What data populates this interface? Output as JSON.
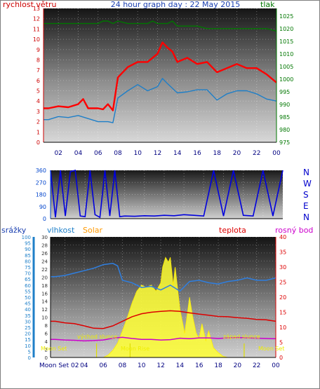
{
  "colors": {
    "wind": "#ff0000",
    "gust": "#1e7fc8",
    "pressure": "#007700",
    "direction": "#0000dd",
    "humidity": "#2f7fe0",
    "solar": "#ffff33",
    "solar_label": "#ff9900",
    "temp": "#dd0000",
    "dew": "#cc00cc",
    "tick_red": "#cc0000",
    "tick_green": "#007700",
    "tick_blue": "#0044cc",
    "sun_marker": "#dddd00"
  },
  "x_ticks": [
    "02",
    "04",
    "06",
    "08",
    "10",
    "12",
    "14",
    "16",
    "18",
    "20",
    "22",
    "00"
  ],
  "panel1": {
    "title": "24 hour graph day : 22 May 2015",
    "left_label": "rychlost větru",
    "right_label": "tlak",
    "left_ticks": [
      "0",
      "1",
      "2",
      "3",
      "4",
      "5",
      "6",
      "7",
      "8",
      "9",
      "10",
      "11",
      "12",
      "13"
    ],
    "right_ticks": [
      "975",
      "980",
      "985",
      "990",
      "995",
      "1000",
      "1005",
      "1010",
      "1015",
      "1020",
      "1025"
    ]
  },
  "panel2": {
    "left_ticks": [
      "0",
      "90",
      "180",
      "270",
      "360"
    ],
    "compass": [
      "N",
      "W",
      "S",
      "E",
      "N"
    ]
  },
  "panel3": {
    "rain_label": "srážky",
    "humidity_label": "vlhkost",
    "solar_label": "Solar",
    "temp_label": "teplota",
    "dew_label": "rosný bod",
    "rain_ticks": [
      "0",
      "5",
      "10",
      "15",
      "20",
      "25",
      "30",
      "35",
      "40",
      "45",
      "50",
      "55",
      "60",
      "65",
      "70",
      "75",
      "80",
      "85",
      "90",
      "95",
      "100"
    ],
    "scale_ticks": [
      "0",
      "2",
      "4",
      "6",
      "8",
      "10",
      "12",
      "14",
      "16",
      "18",
      "20",
      "22",
      "24",
      "26",
      "28",
      "30"
    ],
    "temp_ticks": [
      "0",
      "5",
      "10",
      "15",
      "20",
      "25",
      "30",
      "35",
      "40"
    ],
    "x_first": "Moon Set 02",
    "annotations": {
      "sunrise": "východ slunce",
      "sunset": "západ slunce",
      "moonset_left": "Moon Set",
      "moonrise": "Moon Rise",
      "moonset_right": "Moon Set"
    }
  },
  "chart_data": [
    {
      "type": "line",
      "title": "24 hour graph day : 22 May 2015",
      "x_unit": "hour",
      "xlim": [
        0.5,
        24
      ],
      "y_left": {
        "label": "rychlost větru",
        "ylim": [
          0,
          13
        ]
      },
      "y_right": {
        "label": "tlak",
        "ylim": [
          975,
          1028
        ]
      },
      "grid": true,
      "series": [
        {
          "axis": "left",
          "color": "#ff0000",
          "x": [
            0.5,
            1,
            2,
            3,
            4,
            4.5,
            5,
            6,
            6.5,
            7,
            7.5,
            8,
            9,
            10,
            11,
            12,
            12.5,
            13,
            13.5,
            14,
            15,
            16,
            17,
            18,
            19,
            20,
            21,
            22,
            23,
            24
          ],
          "values": [
            3.3,
            3.3,
            3.5,
            3.4,
            3.7,
            4.2,
            3.3,
            3.3,
            3.2,
            3.7,
            3.1,
            6.3,
            7.3,
            7.8,
            7.8,
            8.6,
            9.7,
            9.2,
            8.8,
            7.8,
            8.2,
            7.6,
            7.8,
            6.8,
            7.2,
            7.6,
            7.2,
            7.2,
            6.6,
            5.8
          ]
        },
        {
          "axis": "left",
          "color": "#1e7fc8",
          "x": [
            0.5,
            1,
            2,
            3,
            4,
            5,
            6,
            7,
            7.5,
            8,
            9,
            10,
            11,
            12,
            12.5,
            13,
            14,
            15,
            16,
            17,
            18,
            19,
            20,
            21,
            22,
            23,
            24
          ],
          "values": [
            2.2,
            2.2,
            2.5,
            2.4,
            2.6,
            2.3,
            2.0,
            2.0,
            1.9,
            4.3,
            5.0,
            5.6,
            5.0,
            5.4,
            6.2,
            5.7,
            4.8,
            4.9,
            5.1,
            5.1,
            4.1,
            4.7,
            5.0,
            5.0,
            4.7,
            4.2,
            4.0
          ]
        },
        {
          "axis": "right",
          "color": "#007700",
          "x": [
            0.5,
            5,
            6,
            6.5,
            7,
            7.5,
            8,
            9,
            10,
            11,
            11.5,
            12,
            13,
            13.5,
            14,
            15,
            16,
            17,
            18,
            19,
            20,
            21,
            22,
            23,
            24
          ],
          "values": [
            1022,
            1022,
            1022,
            1023,
            1023,
            1022,
            1023,
            1022,
            1022,
            1022,
            1023,
            1022,
            1022,
            1023,
            1021,
            1021,
            1021,
            1020,
            1020,
            1020,
            1020,
            1020,
            1020,
            1020,
            1019
          ]
        }
      ]
    },
    {
      "type": "line",
      "x_unit": "hour",
      "xlim": [
        0.5,
        24
      ],
      "ylim": [
        0,
        360
      ],
      "series": [
        {
          "color": "#0000dd",
          "x": [
            0.5,
            1,
            1.5,
            2,
            2.5,
            3,
            3.5,
            4,
            4.5,
            5,
            5.5,
            6,
            6.5,
            7,
            7.5,
            8,
            9,
            10,
            11,
            12,
            13,
            14,
            15,
            16,
            17,
            18,
            19,
            20,
            21,
            22,
            23,
            24
          ],
          "values": [
            360,
            10,
            360,
            20,
            350,
            360,
            20,
            15,
            360,
            30,
            10,
            360,
            20,
            360,
            15,
            20,
            18,
            22,
            20,
            25,
            22,
            30,
            25,
            20,
            360,
            20,
            360,
            25,
            20,
            360,
            20,
            360
          ]
        }
      ]
    },
    {
      "type": "area",
      "x_unit": "hour",
      "xlim": [
        0.5,
        24
      ],
      "y_left": {
        "label": "srážky",
        "ylim": [
          0,
          100
        ]
      },
      "y_mid": {
        "label": "vlhkost",
        "ylim": [
          0,
          30
        ]
      },
      "y_right": {
        "label": "teplota",
        "ylim": [
          0,
          40
        ]
      },
      "series": [
        {
          "name": "vlhkost",
          "axis": "left",
          "color": "#2f7fe0",
          "x": [
            0.5,
            1,
            2,
            3,
            4,
            5,
            6,
            7,
            7.5,
            8,
            9,
            10,
            11,
            12,
            13,
            14,
            15,
            16,
            17,
            18,
            19,
            20,
            21,
            22,
            23,
            24
          ],
          "values": [
            67,
            67,
            68,
            70,
            72,
            74,
            77,
            78,
            76,
            64,
            62,
            58,
            59,
            56,
            60,
            55,
            63,
            64,
            62,
            61,
            63,
            64,
            66,
            64,
            64,
            66
          ]
        },
        {
          "name": "teplota",
          "axis": "right",
          "color": "#dd0000",
          "x": [
            0.5,
            1,
            2,
            3,
            4,
            5,
            6,
            7,
            8,
            9,
            10,
            11,
            12,
            13,
            14,
            15,
            16,
            17,
            18,
            19,
            20,
            21,
            22,
            23,
            24
          ],
          "values": [
            12,
            12,
            11.5,
            11.2,
            10.5,
            9.7,
            9.6,
            10.5,
            12.0,
            13.5,
            14.5,
            15.0,
            15.3,
            15.5,
            15.3,
            14.8,
            14.4,
            14.0,
            13.6,
            13.5,
            13.2,
            13.0,
            12.6,
            12.5,
            12.0
          ]
        },
        {
          "name": "rosný bod",
          "axis": "right",
          "color": "#cc00cc",
          "x": [
            0.5,
            1,
            2,
            3,
            4,
            5,
            6,
            7,
            8,
            9,
            10,
            11,
            12,
            13,
            14,
            15,
            16,
            17,
            18,
            19,
            20,
            21,
            22,
            23,
            24
          ],
          "values": [
            6,
            6,
            5.8,
            5.7,
            5.5,
            5.6,
            5.8,
            6.4,
            6.7,
            6.3,
            6.0,
            6.0,
            5.8,
            5.9,
            6.4,
            6.2,
            6.5,
            6.5,
            6.3,
            6.5,
            6.6,
            6.5,
            6.4,
            6.3,
            6.2
          ]
        },
        {
          "name": "Solar",
          "axis": "left",
          "color": "#ffff33",
          "x": [
            0.5,
            5,
            6,
            6.5,
            7,
            7.5,
            8,
            8.5,
            9,
            9.5,
            10,
            10.5,
            11,
            11.5,
            12,
            12.2,
            12.5,
            12.8,
            13,
            13.3,
            13.5,
            14,
            14.5,
            15,
            15.3,
            15.7,
            16,
            16.3,
            16.7,
            17,
            17.5,
            18,
            18.5,
            19,
            24
          ],
          "values": [
            0,
            0,
            0,
            2,
            6,
            12,
            22,
            33,
            45,
            55,
            60,
            58,
            60,
            55,
            62,
            75,
            83,
            79,
            83,
            60,
            75,
            40,
            20,
            50,
            35,
            20,
            16,
            28,
            14,
            22,
            8,
            4,
            1,
            0,
            0
          ]
        }
      ],
      "events": [
        {
          "hour": 5.3,
          "kind": "moonset"
        },
        {
          "hour": 8.8,
          "kind": "moonrise"
        },
        {
          "hour": 20.7,
          "kind": "sunset"
        }
      ]
    }
  ]
}
